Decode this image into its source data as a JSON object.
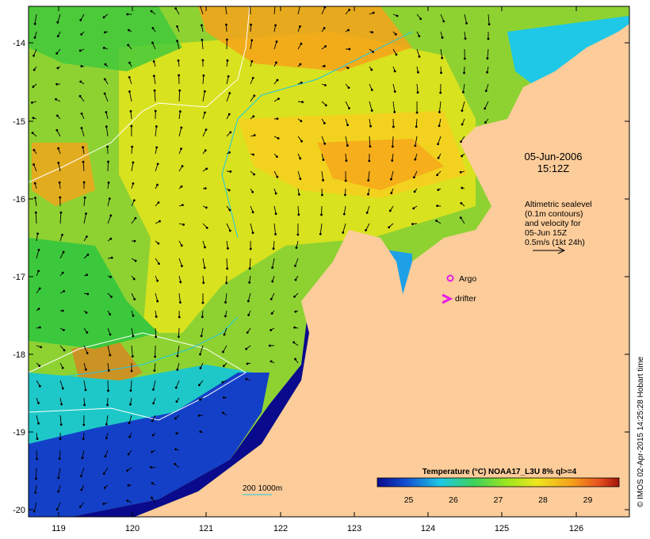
{
  "map": {
    "date": "05-Jun-2006",
    "time": "15:12Z",
    "longitude_ticks": [
      "119",
      "120",
      "121",
      "122",
      "123",
      "124",
      "125",
      "126"
    ],
    "latitude_ticks": [
      "-14",
      "-15",
      "-16",
      "-17",
      "-18",
      "-19",
      "-20"
    ],
    "altimetry_note": [
      "Altimetric sealevel",
      "(0.1m contours)",
      "and velocity for",
      "05-Jun 15Z",
      "0.5m/s (1kt 24h)"
    ],
    "legend": {
      "argo_label": "Argo",
      "drifter_label": "drifter",
      "depth_label": "200  1000m"
    },
    "colorbar": {
      "title": "Temperature (°C) NOAA17_L3U 8% ql>=4",
      "tick_labels": [
        "25",
        "26",
        "27",
        "28",
        "29"
      ],
      "min": 24.3,
      "max": 29.7
    },
    "credit": "© IMOS 02-Apr-2015 14:25:28 Hobart time",
    "colors": {
      "land": "#fccc9a",
      "warm_orange": "#f7a21a",
      "yellow": "#e6e61e",
      "green": "#50c832",
      "cyan": "#1ec8e6",
      "deep_blue": "#0a1e96",
      "marker": "#e61ee6"
    }
  }
}
